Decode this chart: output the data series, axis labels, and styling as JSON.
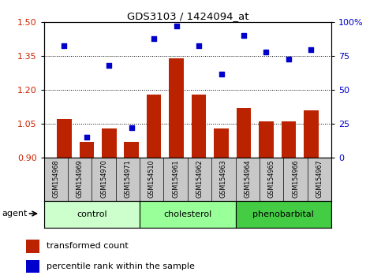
{
  "title": "GDS3103 / 1424094_at",
  "samples": [
    "GSM154968",
    "GSM154969",
    "GSM154970",
    "GSM154971",
    "GSM154510",
    "GSM154961",
    "GSM154962",
    "GSM154963",
    "GSM154964",
    "GSM154965",
    "GSM154966",
    "GSM154967"
  ],
  "bar_values": [
    1.07,
    0.97,
    1.03,
    0.97,
    1.18,
    1.34,
    1.18,
    1.03,
    1.12,
    1.06,
    1.06,
    1.11
  ],
  "scatter_values": [
    83,
    15,
    68,
    22,
    88,
    97,
    83,
    62,
    90,
    78,
    73,
    80
  ],
  "bar_color": "#BB2200",
  "scatter_color": "#0000CC",
  "ylim_left": [
    0.9,
    1.5
  ],
  "ylim_right": [
    0,
    100
  ],
  "yticks_left": [
    0.9,
    1.05,
    1.2,
    1.35,
    1.5
  ],
  "yticks_right": [
    0,
    25,
    50,
    75,
    100
  ],
  "ytick_labels_right": [
    "0",
    "25",
    "50",
    "75",
    "100%"
  ],
  "groups": [
    {
      "label": "control",
      "start": 0,
      "end": 3,
      "color": "#ccffcc"
    },
    {
      "label": "cholesterol",
      "start": 4,
      "end": 7,
      "color": "#99ff99"
    },
    {
      "label": "phenobarbital",
      "start": 8,
      "end": 11,
      "color": "#44cc44"
    }
  ],
  "agent_label": "agent",
  "legend_bar_label": "transformed count",
  "legend_scatter_label": "percentile rank within the sample",
  "hlines": [
    1.05,
    1.2,
    1.35
  ],
  "bar_bottom": 0.9,
  "bar_width": 0.65
}
